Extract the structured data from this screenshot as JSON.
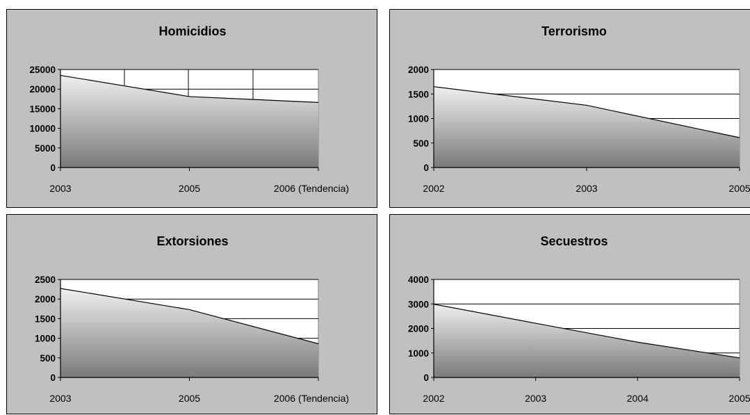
{
  "chart_data": [
    {
      "type": "area",
      "title": "Homicidios",
      "categories": [
        "2003",
        "2005",
        "2006 (Tendencia)"
      ],
      "values": [
        23500,
        18100,
        16600
      ],
      "ylim": [
        0,
        25000
      ],
      "yticks": [
        "0",
        "5000",
        "10000",
        "15000",
        "20000",
        "25000"
      ],
      "grid": true,
      "legend": "none"
    },
    {
      "type": "area",
      "title": "Terrorismo",
      "categories": [
        "2002",
        "2003",
        "2005"
      ],
      "values": [
        1650,
        1270,
        610
      ],
      "ylim": [
        0,
        2000
      ],
      "yticks": [
        "0",
        "500",
        "1000",
        "1500",
        "2000"
      ],
      "grid": true,
      "legend": "none"
    },
    {
      "type": "area",
      "title": "Extorsiones",
      "categories": [
        "2003",
        "2005",
        "2006 (Tendencia)"
      ],
      "values": [
        2270,
        1730,
        860
      ],
      "ylim": [
        0,
        2500
      ],
      "yticks": [
        "0",
        "500",
        "1000",
        "1500",
        "2000",
        "2500"
      ],
      "grid": true,
      "legend": "none"
    },
    {
      "type": "area",
      "title": "Secuestros",
      "categories": [
        "2002",
        "2003",
        "2004",
        "2005"
      ],
      "values": [
        2990,
        2210,
        1440,
        800
      ],
      "ylim": [
        0,
        4000
      ],
      "yticks": [
        "0",
        "1000",
        "2000",
        "3000",
        "4000"
      ],
      "grid": true,
      "legend": "none"
    }
  ]
}
